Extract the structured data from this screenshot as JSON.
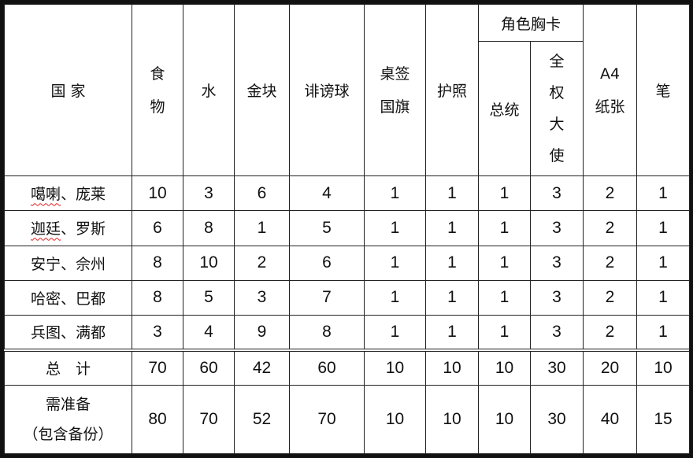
{
  "headers": {
    "country": "国 家",
    "food": "食\n物",
    "water": "水",
    "gold": "金块",
    "slander_ball": "诽谤球",
    "desk_flag": "桌签\n国旗",
    "passport": "护照",
    "role_badge": "角色胸卡",
    "president": "总统",
    "ambassador": "全\n权\n大\n使",
    "a4_paper": "A4\n纸张",
    "pen": "笔"
  },
  "rows": [
    {
      "name_a": "噶喇",
      "name_b": "、庞莱",
      "spellcheck": true,
      "values": [
        "10",
        "3",
        "6",
        "4",
        "1",
        "1",
        "1",
        "3",
        "2",
        "1"
      ]
    },
    {
      "name_a": "迦廷",
      "name_b": "、罗斯",
      "spellcheck": true,
      "values": [
        "6",
        "8",
        "1",
        "5",
        "1",
        "1",
        "1",
        "3",
        "2",
        "1"
      ]
    },
    {
      "name_a": "安宁",
      "name_b": "、佘州",
      "spellcheck": false,
      "values": [
        "8",
        "10",
        "2",
        "6",
        "1",
        "1",
        "1",
        "3",
        "2",
        "1"
      ]
    },
    {
      "name_a": "哈密",
      "name_b": "、巴都",
      "spellcheck": false,
      "values": [
        "8",
        "5",
        "3",
        "7",
        "1",
        "1",
        "1",
        "3",
        "2",
        "1"
      ]
    },
    {
      "name_a": "兵图",
      "name_b": "、满都",
      "spellcheck": false,
      "values": [
        "3",
        "4",
        "9",
        "8",
        "1",
        "1",
        "1",
        "3",
        "2",
        "1"
      ]
    }
  ],
  "total": {
    "label": "总　计",
    "values": [
      "70",
      "60",
      "42",
      "60",
      "10",
      "10",
      "10",
      "30",
      "20",
      "10"
    ]
  },
  "required": {
    "label": "需准备\n（包含备份）",
    "values": [
      "80",
      "70",
      "52",
      "70",
      "10",
      "10",
      "10",
      "30",
      "40",
      "15"
    ]
  }
}
